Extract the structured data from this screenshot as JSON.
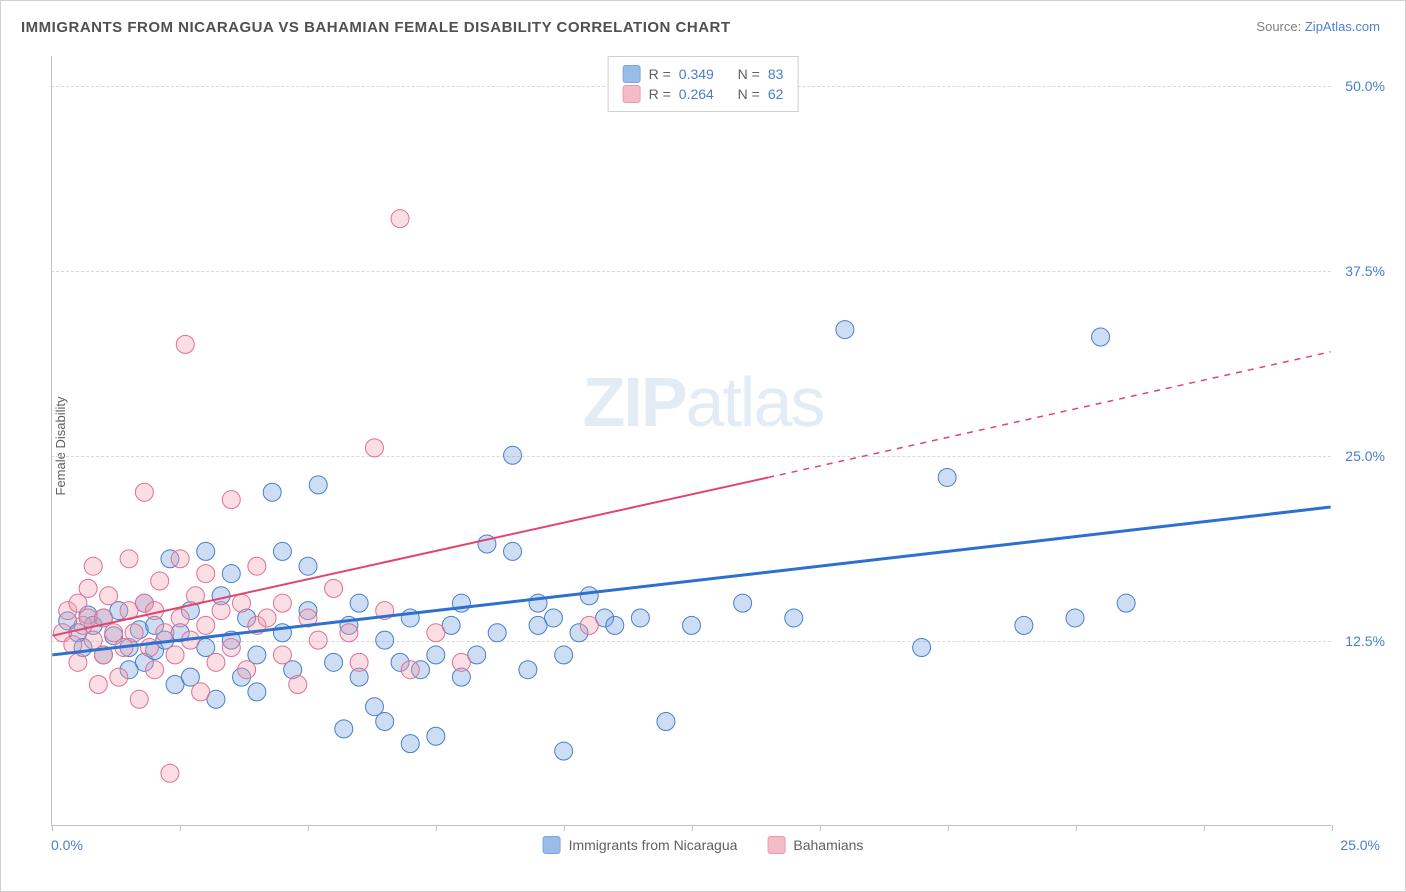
{
  "title": "IMMIGRANTS FROM NICARAGUA VS BAHAMIAN FEMALE DISABILITY CORRELATION CHART",
  "source_label": "Source:",
  "source_name": "ZipAtlas.com",
  "watermark_a": "ZIP",
  "watermark_b": "atlas",
  "chart": {
    "type": "scatter",
    "background_color": "#ffffff",
    "grid_color": "#d8d8d8",
    "border_color": "#c0c0c0",
    "axis_text_color": "#4a7ec9",
    "label_text_color": "#606060",
    "ylabel": "Female Disability",
    "ylabel_fontsize": 13,
    "xlim": [
      0,
      25
    ],
    "ylim": [
      0,
      52
    ],
    "ytick_labels": [
      "12.5%",
      "25.0%",
      "37.5%",
      "50.0%"
    ],
    "ytick_values": [
      12.5,
      25.0,
      37.5,
      50.0
    ],
    "xtick_positions": [
      0,
      2.5,
      5,
      7.5,
      10,
      12.5,
      15,
      17.5,
      20,
      22.5,
      25
    ],
    "xaxis_label_left": "0.0%",
    "xaxis_label_right": "25.0%",
    "marker_radius": 9,
    "marker_fill_opacity": 0.35,
    "series": [
      {
        "name": "Immigrants from Nicaragua",
        "color": "#6fa0e0",
        "stroke": "#4a7ec9",
        "legend_R": "0.349",
        "legend_N": "83",
        "trend_line": {
          "x1": 0,
          "y1": 11.5,
          "x2": 25,
          "y2": 21.5,
          "color": "#2e6fd0",
          "width": 3
        },
        "points": [
          [
            0.3,
            13.8
          ],
          [
            0.5,
            13.0
          ],
          [
            0.7,
            14.2
          ],
          [
            0.6,
            12.0
          ],
          [
            0.8,
            13.5
          ],
          [
            1.0,
            14.0
          ],
          [
            1.0,
            11.5
          ],
          [
            1.2,
            12.8
          ],
          [
            1.3,
            14.5
          ],
          [
            1.5,
            12.0
          ],
          [
            1.5,
            10.5
          ],
          [
            1.7,
            13.2
          ],
          [
            1.8,
            11.0
          ],
          [
            1.8,
            15.0
          ],
          [
            2.0,
            11.8
          ],
          [
            2.0,
            13.5
          ],
          [
            2.2,
            12.5
          ],
          [
            2.3,
            18.0
          ],
          [
            2.4,
            9.5
          ],
          [
            2.5,
            13.0
          ],
          [
            2.7,
            10.0
          ],
          [
            2.7,
            14.5
          ],
          [
            3.0,
            12.0
          ],
          [
            3.0,
            18.5
          ],
          [
            3.2,
            8.5
          ],
          [
            3.3,
            15.5
          ],
          [
            3.5,
            12.5
          ],
          [
            3.5,
            17.0
          ],
          [
            3.7,
            10.0
          ],
          [
            3.8,
            14.0
          ],
          [
            4.0,
            11.5
          ],
          [
            4.0,
            9.0
          ],
          [
            4.3,
            22.5
          ],
          [
            4.5,
            13.0
          ],
          [
            4.5,
            18.5
          ],
          [
            4.7,
            10.5
          ],
          [
            5.0,
            14.5
          ],
          [
            5.0,
            17.5
          ],
          [
            5.2,
            23.0
          ],
          [
            5.5,
            11.0
          ],
          [
            5.7,
            6.5
          ],
          [
            5.8,
            13.5
          ],
          [
            6.0,
            10.0
          ],
          [
            6.0,
            15.0
          ],
          [
            6.3,
            8.0
          ],
          [
            6.5,
            7.0
          ],
          [
            6.5,
            12.5
          ],
          [
            6.8,
            11.0
          ],
          [
            7.0,
            14.0
          ],
          [
            7.0,
            5.5
          ],
          [
            7.2,
            10.5
          ],
          [
            7.5,
            6.0
          ],
          [
            7.5,
            11.5
          ],
          [
            7.8,
            13.5
          ],
          [
            8.0,
            10.0
          ],
          [
            8.0,
            15.0
          ],
          [
            8.3,
            11.5
          ],
          [
            8.5,
            19.0
          ],
          [
            8.7,
            13.0
          ],
          [
            9.0,
            18.5
          ],
          [
            9.0,
            25.0
          ],
          [
            9.3,
            10.5
          ],
          [
            9.5,
            13.5
          ],
          [
            9.5,
            15.0
          ],
          [
            9.8,
            14.0
          ],
          [
            10.0,
            5.0
          ],
          [
            10.0,
            11.5
          ],
          [
            10.3,
            13.0
          ],
          [
            10.5,
            15.5
          ],
          [
            10.8,
            14.0
          ],
          [
            11.0,
            13.5
          ],
          [
            11.5,
            14.0
          ],
          [
            12.0,
            7.0
          ],
          [
            12.5,
            13.5
          ],
          [
            13.5,
            15.0
          ],
          [
            14.5,
            14.0
          ],
          [
            15.5,
            33.5
          ],
          [
            17.0,
            12.0
          ],
          [
            17.5,
            23.5
          ],
          [
            19.0,
            13.5
          ],
          [
            20.0,
            14.0
          ],
          [
            20.5,
            33.0
          ],
          [
            21.0,
            15.0
          ]
        ]
      },
      {
        "name": "Bahamians",
        "color": "#f0a0b0",
        "stroke": "#e07090",
        "legend_R": "0.264",
        "legend_N": "62",
        "trend_line": {
          "x1": 0,
          "y1": 12.8,
          "x2": 14,
          "y2": 23.5,
          "color": "#e04570",
          "width": 2,
          "dash_extend": {
            "x1": 14,
            "y1": 23.5,
            "x2": 25,
            "y2": 32.0
          }
        },
        "points": [
          [
            0.2,
            13.0
          ],
          [
            0.3,
            14.5
          ],
          [
            0.4,
            12.2
          ],
          [
            0.5,
            15.0
          ],
          [
            0.5,
            11.0
          ],
          [
            0.6,
            13.5
          ],
          [
            0.7,
            16.0
          ],
          [
            0.7,
            14.0
          ],
          [
            0.8,
            12.5
          ],
          [
            0.8,
            17.5
          ],
          [
            0.9,
            9.5
          ],
          [
            1.0,
            14.0
          ],
          [
            1.0,
            11.5
          ],
          [
            1.1,
            15.5
          ],
          [
            1.2,
            13.0
          ],
          [
            1.3,
            10.0
          ],
          [
            1.4,
            12.0
          ],
          [
            1.5,
            18.0
          ],
          [
            1.5,
            14.5
          ],
          [
            1.6,
            13.0
          ],
          [
            1.7,
            8.5
          ],
          [
            1.8,
            15.0
          ],
          [
            1.8,
            22.5
          ],
          [
            1.9,
            12.0
          ],
          [
            2.0,
            14.5
          ],
          [
            2.0,
            10.5
          ],
          [
            2.1,
            16.5
          ],
          [
            2.2,
            13.0
          ],
          [
            2.3,
            3.5
          ],
          [
            2.4,
            11.5
          ],
          [
            2.5,
            18.0
          ],
          [
            2.5,
            14.0
          ],
          [
            2.6,
            32.5
          ],
          [
            2.7,
            12.5
          ],
          [
            2.8,
            15.5
          ],
          [
            2.9,
            9.0
          ],
          [
            3.0,
            17.0
          ],
          [
            3.0,
            13.5
          ],
          [
            3.2,
            11.0
          ],
          [
            3.3,
            14.5
          ],
          [
            3.5,
            22.0
          ],
          [
            3.5,
            12.0
          ],
          [
            3.7,
            15.0
          ],
          [
            3.8,
            10.5
          ],
          [
            4.0,
            13.5
          ],
          [
            4.0,
            17.5
          ],
          [
            4.2,
            14.0
          ],
          [
            4.5,
            11.5
          ],
          [
            4.5,
            15.0
          ],
          [
            4.8,
            9.5
          ],
          [
            5.0,
            14.0
          ],
          [
            5.2,
            12.5
          ],
          [
            5.5,
            16.0
          ],
          [
            5.8,
            13.0
          ],
          [
            6.0,
            11.0
          ],
          [
            6.3,
            25.5
          ],
          [
            6.5,
            14.5
          ],
          [
            6.8,
            41.0
          ],
          [
            7.0,
            10.5
          ],
          [
            7.5,
            13.0
          ],
          [
            8.0,
            11.0
          ],
          [
            10.5,
            13.5
          ]
        ]
      }
    ]
  },
  "legend_top": {
    "r_label": "R =",
    "n_label": "N ="
  },
  "legend_bottom_items": [
    {
      "label": "Immigrants from Nicaragua",
      "color": "#6fa0e0",
      "stroke": "#4a7ec9"
    },
    {
      "label": "Bahamians",
      "color": "#f0a0b0",
      "stroke": "#e07090"
    }
  ]
}
